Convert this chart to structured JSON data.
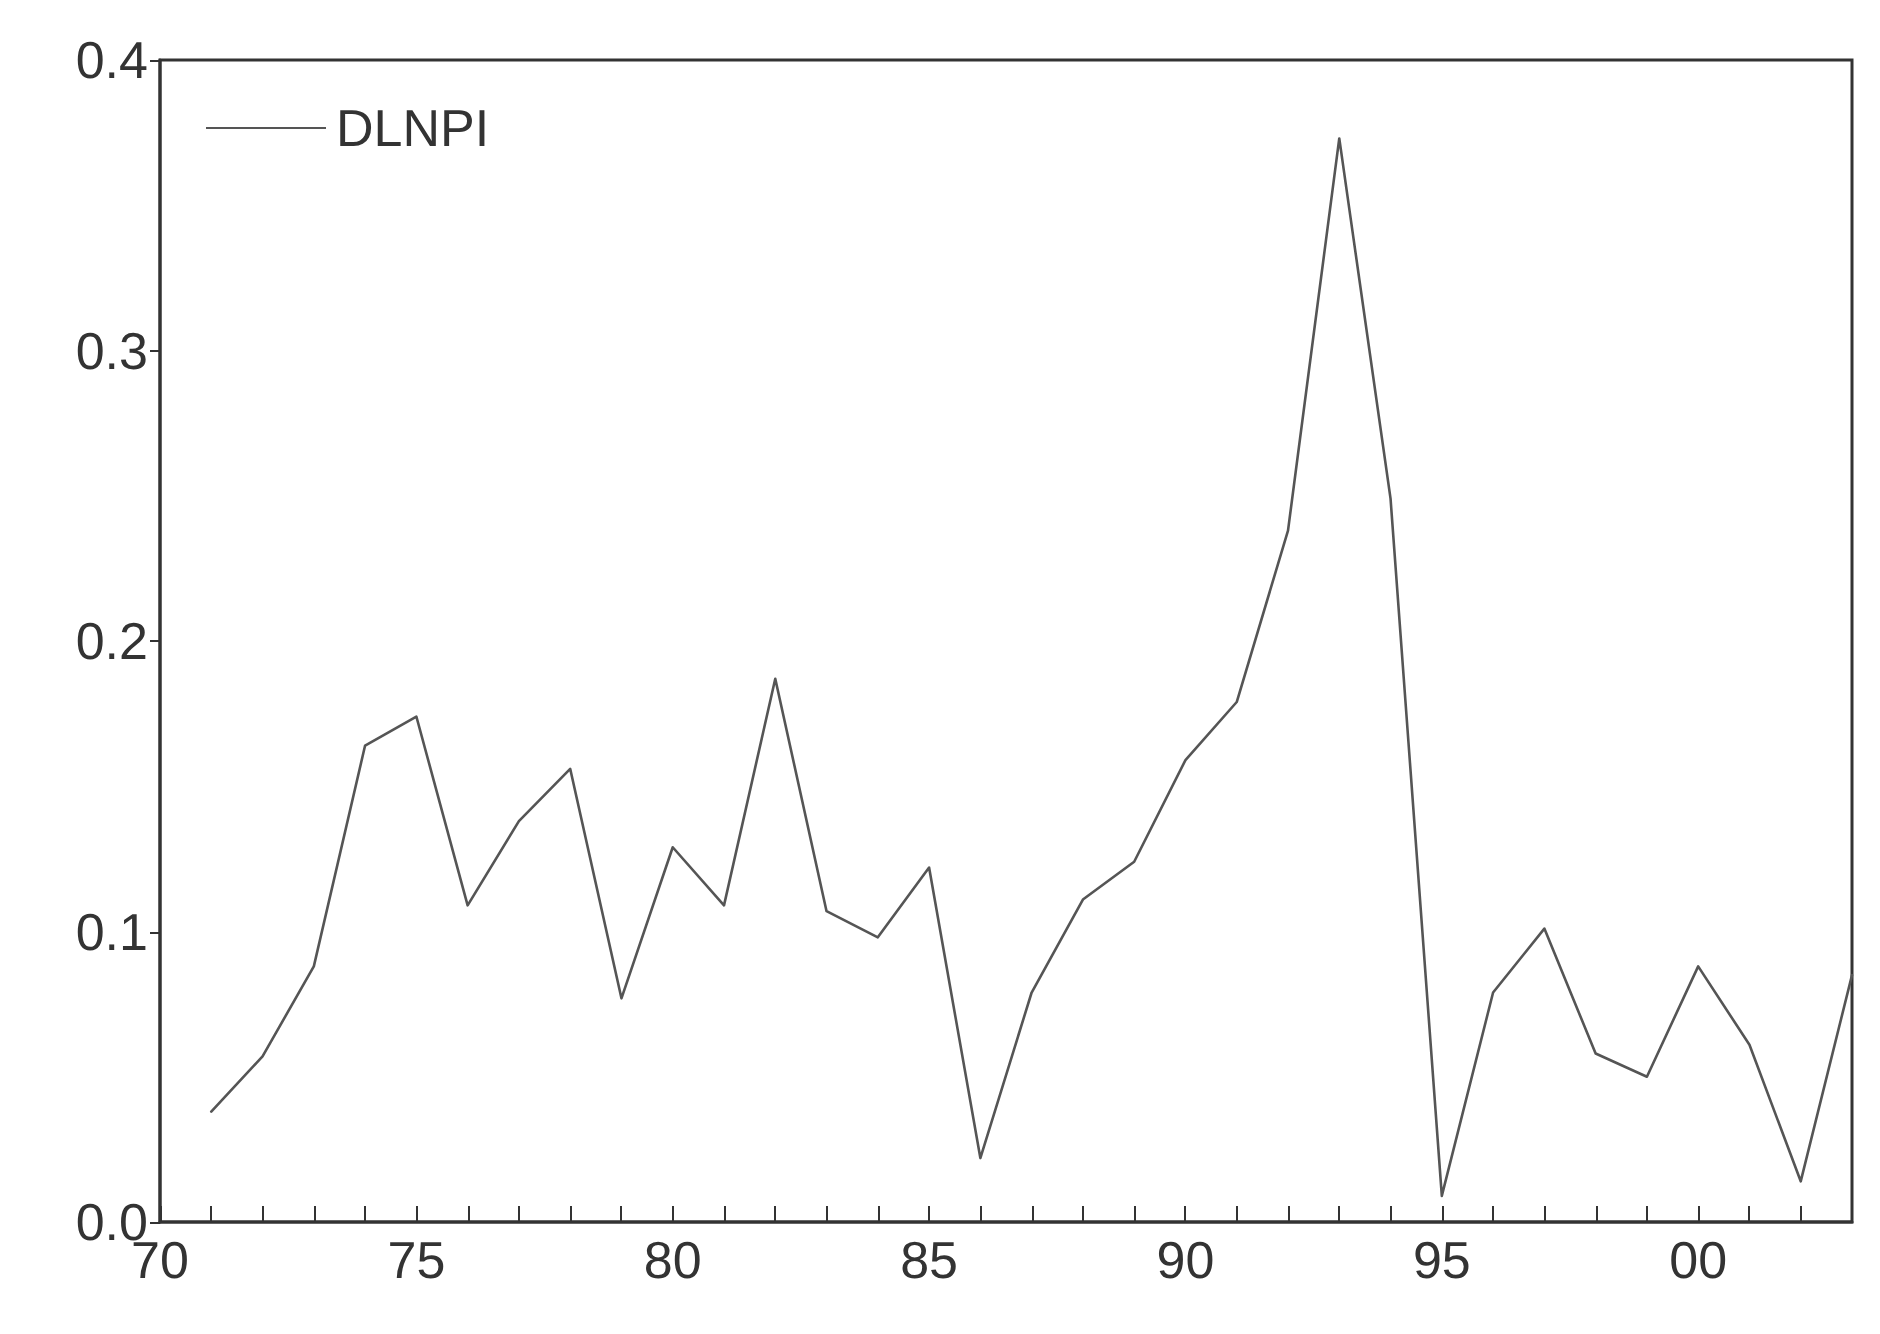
{
  "chart_data": {
    "type": "line",
    "x": [
      1971,
      1972,
      1973,
      1974,
      1975,
      1976,
      1977,
      1978,
      1979,
      1980,
      1981,
      1982,
      1983,
      1984,
      1985,
      1986,
      1987,
      1988,
      1989,
      1990,
      1991,
      1992,
      1993,
      1994,
      1995,
      1996,
      1997,
      1998,
      1999,
      2000,
      2001,
      2002,
      2003
    ],
    "series": [
      {
        "name": "DLNPI",
        "color": "#555555",
        "values": [
          0.038,
          0.057,
          0.088,
          0.164,
          0.174,
          0.109,
          0.138,
          0.156,
          0.077,
          0.129,
          0.109,
          0.187,
          0.107,
          0.098,
          0.122,
          0.022,
          0.079,
          0.111,
          0.124,
          0.159,
          0.179,
          0.238,
          0.373,
          0.249,
          0.009,
          0.079,
          0.101,
          0.058,
          0.05,
          0.088,
          0.061,
          0.014,
          0.085
        ]
      }
    ],
    "xlim": [
      1970,
      2003
    ],
    "xticks": [
      {
        "value": 1970,
        "label": "70"
      },
      {
        "value": 1971,
        "label": null
      },
      {
        "value": 1972,
        "label": null
      },
      {
        "value": 1973,
        "label": null
      },
      {
        "value": 1974,
        "label": null
      },
      {
        "value": 1975,
        "label": "75"
      },
      {
        "value": 1976,
        "label": null
      },
      {
        "value": 1977,
        "label": null
      },
      {
        "value": 1978,
        "label": null
      },
      {
        "value": 1979,
        "label": null
      },
      {
        "value": 1980,
        "label": "80"
      },
      {
        "value": 1981,
        "label": null
      },
      {
        "value": 1982,
        "label": null
      },
      {
        "value": 1983,
        "label": null
      },
      {
        "value": 1984,
        "label": null
      },
      {
        "value": 1985,
        "label": "85"
      },
      {
        "value": 1986,
        "label": null
      },
      {
        "value": 1987,
        "label": null
      },
      {
        "value": 1988,
        "label": null
      },
      {
        "value": 1989,
        "label": null
      },
      {
        "value": 1990,
        "label": "90"
      },
      {
        "value": 1991,
        "label": null
      },
      {
        "value": 1992,
        "label": null
      },
      {
        "value": 1993,
        "label": null
      },
      {
        "value": 1994,
        "label": null
      },
      {
        "value": 1995,
        "label": "95"
      },
      {
        "value": 1996,
        "label": null
      },
      {
        "value": 1997,
        "label": null
      },
      {
        "value": 1998,
        "label": null
      },
      {
        "value": 1999,
        "label": null
      },
      {
        "value": 2000,
        "label": "00"
      },
      {
        "value": 2001,
        "label": null
      },
      {
        "value": 2002,
        "label": null
      }
    ],
    "ylim": [
      0,
      0.4
    ],
    "yticks": [
      {
        "value": 0,
        "label": "0.0"
      },
      {
        "value": 0.1,
        "label": "0.1"
      },
      {
        "value": 0.2,
        "label": "0.2"
      },
      {
        "value": 0.3,
        "label": "0.3"
      },
      {
        "value": 0.4,
        "label": "0.4"
      }
    ],
    "grid": false,
    "legend": "top left",
    "marker": "none",
    "line_style": "solid"
  }
}
